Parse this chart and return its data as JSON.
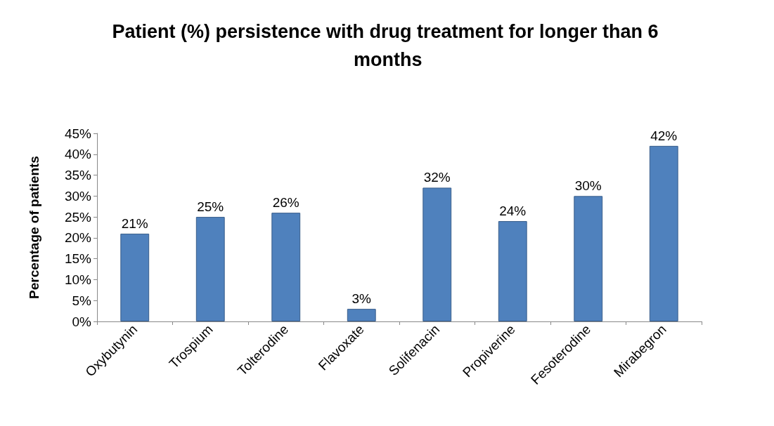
{
  "chart_data": {
    "type": "bar",
    "title": "Patient (%) persistence with drug treatment for longer than 6 months",
    "ylabel": "Percentage of patients",
    "categories": [
      "Oxybutynin",
      "Trospium",
      "Tolterodine",
      "Flavoxate",
      "Solifenacin",
      "Propiverine",
      "Fesoterodine",
      "Mirabegron"
    ],
    "values": [
      21,
      25,
      26,
      3,
      32,
      24,
      30,
      42
    ],
    "value_labels": [
      "21%",
      "25%",
      "26%",
      "3%",
      "32%",
      "24%",
      "30%",
      "42%"
    ],
    "color": "#4f81bd",
    "ylim": [
      0,
      45
    ],
    "yticks": [
      {
        "value": 0,
        "label": "0%"
      },
      {
        "value": 5,
        "label": "5%"
      },
      {
        "value": 10,
        "label": "10%"
      },
      {
        "value": 15,
        "label": "15%"
      },
      {
        "value": 20,
        "label": "20%"
      },
      {
        "value": 25,
        "label": "25%"
      },
      {
        "value": 30,
        "label": "30%"
      },
      {
        "value": 35,
        "label": "35%"
      },
      {
        "value": 40,
        "label": "40%"
      },
      {
        "value": 45,
        "label": "45%"
      }
    ],
    "grid": false
  }
}
